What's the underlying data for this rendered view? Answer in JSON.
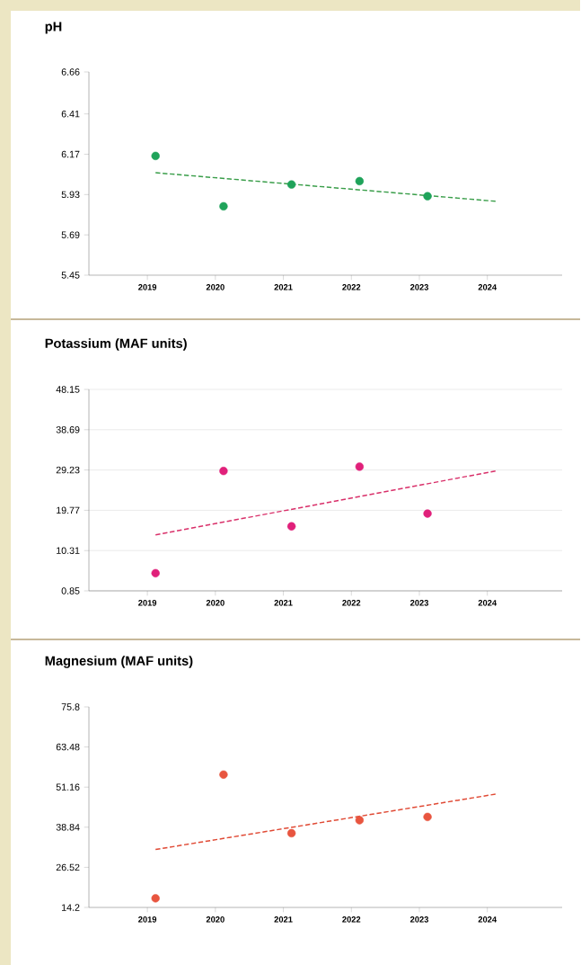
{
  "chart_data": [
    {
      "type": "scatter",
      "title": "pH",
      "xlim": [
        2018.14,
        2025.1
      ],
      "xticks": [
        2019,
        2020,
        2021,
        2022,
        2023,
        2024
      ],
      "ylim": [
        5.45,
        6.66
      ],
      "yticks": [
        5.45,
        5.69,
        5.93,
        6.17,
        6.41,
        6.66
      ],
      "series": [
        {
          "marker": "circle",
          "color": "#1fa35a",
          "x": [
            2019.12,
            2020.12,
            2021.12,
            2022.12,
            2023.12
          ],
          "values": [
            6.16,
            5.86,
            5.99,
            6.01,
            5.92
          ]
        },
        {
          "type": "line",
          "marker": "none",
          "line_style": "dashed",
          "color": "#3a9e4a",
          "x": [
            2019.12,
            2024.12
          ],
          "values": [
            6.06,
            5.89
          ]
        }
      ]
    },
    {
      "type": "scatter",
      "title": "Potassium (MAF units)",
      "grid": "y",
      "xlim": [
        2018.14,
        2025.1
      ],
      "xticks": [
        2019,
        2020,
        2021,
        2022,
        2023,
        2024
      ],
      "ylim": [
        0.85,
        48.15
      ],
      "yticks": [
        0.85,
        10.31,
        19.77,
        29.23,
        38.69,
        48.15
      ],
      "series": [
        {
          "marker": "circle",
          "color": "#e0207a",
          "x": [
            2019.12,
            2020.12,
            2021.12,
            2022.12,
            2023.12
          ],
          "values": [
            5,
            29,
            16,
            30,
            19
          ]
        },
        {
          "type": "line",
          "marker": "none",
          "line_style": "dashed",
          "color": "#d9306a",
          "x": [
            2019.12,
            2024.12
          ],
          "values": [
            14,
            29
          ]
        }
      ]
    },
    {
      "type": "scatter",
      "title": "Magnesium (MAF units)",
      "xlim": [
        2018.14,
        2025.1
      ],
      "xticks": [
        2019,
        2020,
        2021,
        2022,
        2023,
        2024
      ],
      "ylim": [
        14.2,
        75.8
      ],
      "yticks": [
        14.2,
        26.52,
        38.84,
        51.16,
        63.48,
        75.8
      ],
      "series": [
        {
          "marker": "circle",
          "color": "#e8553f",
          "x": [
            2019.12,
            2020.12,
            2021.12,
            2022.12,
            2023.12
          ],
          "values": [
            17,
            55,
            37,
            41,
            42
          ]
        },
        {
          "type": "line",
          "marker": "none",
          "line_style": "dashed",
          "color": "#e04a35",
          "x": [
            2019.12,
            2024.12
          ],
          "values": [
            32,
            49
          ]
        }
      ]
    }
  ]
}
